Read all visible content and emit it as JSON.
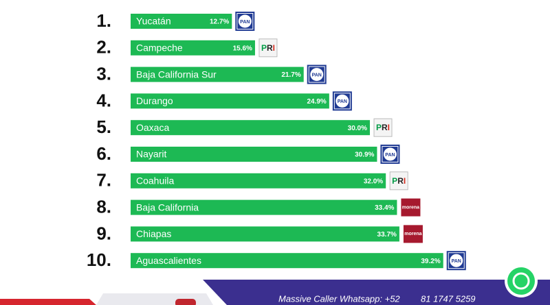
{
  "chart_data": {
    "type": "bar",
    "orientation": "horizontal",
    "ranks": [
      "1.",
      "2.",
      "3.",
      "4.",
      "5.",
      "6.",
      "7.",
      "8.",
      "9.",
      "10."
    ],
    "categories": [
      "Yucatán",
      "Campeche",
      "Baja California Sur",
      "Durango",
      "Oaxaca",
      "Nayarit",
      "Coahuila",
      "Baja California",
      "Chiapas",
      "Aguascalientes"
    ],
    "values": [
      12.7,
      15.6,
      21.7,
      24.9,
      30.0,
      30.9,
      32.0,
      33.4,
      33.7,
      39.2
    ],
    "value_labels": [
      "12.7%",
      "15.6%",
      "21.7%",
      "24.9%",
      "30.0%",
      "30.9%",
      "32.0%",
      "33.4%",
      "33.7%",
      "39.2%"
    ],
    "parties": [
      "PAN",
      "PRI",
      "PAN",
      "PAN",
      "PRI",
      "PAN",
      "PRI",
      "morena",
      "morena",
      "PAN"
    ],
    "color": "#1db954",
    "xlim": [
      0,
      40
    ]
  },
  "footer": {
    "text": "Massive Caller Whatsapp: +52",
    "phone": "81 1747 5259"
  }
}
